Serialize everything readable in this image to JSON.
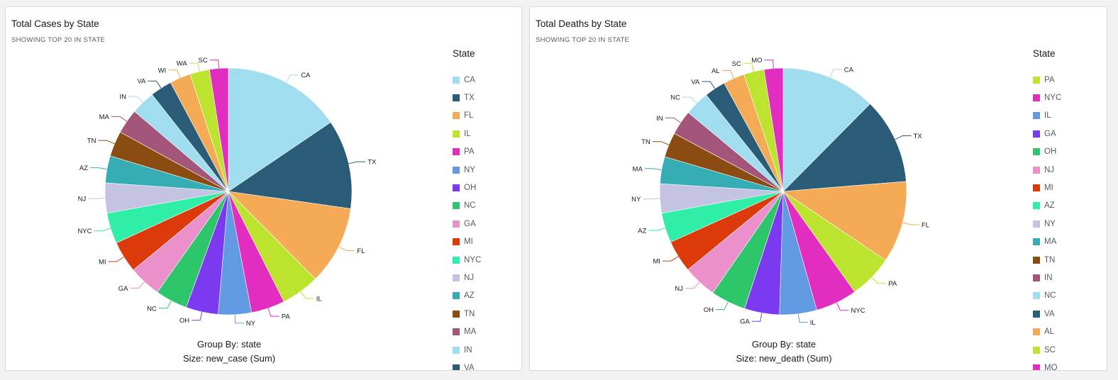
{
  "chart_data": [
    {
      "type": "pie",
      "title": "Total Cases by State",
      "subtitle": "SHOWING TOP 20 IN STATE",
      "legend_title": "State",
      "legend_placement": "right",
      "group_by": "Group By: state",
      "size_by": "Size: new_case (Sum)",
      "slices": [
        {
          "name": "CA",
          "value": 15.8,
          "color": "#a0ddef"
        },
        {
          "name": "TX",
          "value": 11.9,
          "color": "#2a5c78"
        },
        {
          "name": "FL",
          "value": 10.5,
          "color": "#f5aa55"
        },
        {
          "name": "IL",
          "value": 5.1,
          "color": "#bce42f"
        },
        {
          "name": "PA",
          "value": 4.5,
          "color": "#e32dc1"
        },
        {
          "name": "NY",
          "value": 4.4,
          "color": "#6199e2"
        },
        {
          "name": "OH",
          "value": 4.3,
          "color": "#7b3af0"
        },
        {
          "name": "NC",
          "value": 4.3,
          "color": "#2dc66b"
        },
        {
          "name": "GA",
          "value": 4.3,
          "color": "#ec90cb"
        },
        {
          "name": "MI",
          "value": 4.2,
          "color": "#dd3a0c"
        },
        {
          "name": "NYC",
          "value": 4.1,
          "color": "#2eeea8"
        },
        {
          "name": "NJ",
          "value": 4.0,
          "color": "#c4c4e2"
        },
        {
          "name": "AZ",
          "value": 3.6,
          "color": "#36adb5"
        },
        {
          "name": "TN",
          "value": 3.4,
          "color": "#8b4c12"
        },
        {
          "name": "MA",
          "value": 3.3,
          "color": "#a4567a"
        },
        {
          "name": "IN",
          "value": 3.2,
          "color": "#a0ddef"
        },
        {
          "name": "VA",
          "value": 2.9,
          "color": "#2a5c78"
        },
        {
          "name": "WI",
          "value": 2.8,
          "color": "#f5aa55"
        },
        {
          "name": "WA",
          "value": 2.6,
          "color": "#bce42f"
        },
        {
          "name": "SC",
          "value": 2.5,
          "color": "#e32dc1"
        }
      ],
      "legend_items": [
        "CA",
        "TX",
        "FL",
        "IL",
        "PA",
        "NY",
        "OH",
        "NC",
        "GA",
        "MI",
        "NYC",
        "NJ",
        "AZ",
        "TN",
        "MA",
        "IN",
        "VA"
      ]
    },
    {
      "type": "pie",
      "title": "Total Deaths by State",
      "subtitle": "SHOWING TOP 20 IN STATE",
      "legend_title": "State",
      "legend_placement": "right",
      "group_by": "Group By: state",
      "size_by": "Size: new_death (Sum)",
      "slices": [
        {
          "name": "CA",
          "value": 13.0,
          "color": "#a0ddef"
        },
        {
          "name": "TX",
          "value": 11.8,
          "color": "#2a5c78"
        },
        {
          "name": "FL",
          "value": 11.2,
          "color": "#f5aa55"
        },
        {
          "name": "PA",
          "value": 6.0,
          "color": "#bce42f"
        },
        {
          "name": "NYC",
          "value": 5.7,
          "color": "#e32dc1"
        },
        {
          "name": "IL",
          "value": 5.1,
          "color": "#6199e2"
        },
        {
          "name": "GA",
          "value": 4.8,
          "color": "#7b3af0"
        },
        {
          "name": "OH",
          "value": 4.8,
          "color": "#2dc66b"
        },
        {
          "name": "NJ",
          "value": 4.6,
          "color": "#ec90cb"
        },
        {
          "name": "MI",
          "value": 4.4,
          "color": "#dd3a0c"
        },
        {
          "name": "AZ",
          "value": 4.1,
          "color": "#2eeea8"
        },
        {
          "name": "NY",
          "value": 4.0,
          "color": "#c4c4e2"
        },
        {
          "name": "MA",
          "value": 3.7,
          "color": "#36adb5"
        },
        {
          "name": "TN",
          "value": 3.4,
          "color": "#8b4c12"
        },
        {
          "name": "IN",
          "value": 3.4,
          "color": "#a4567a"
        },
        {
          "name": "NC",
          "value": 3.4,
          "color": "#a0ddef"
        },
        {
          "name": "VA",
          "value": 2.9,
          "color": "#2a5c78"
        },
        {
          "name": "AL",
          "value": 2.9,
          "color": "#f5aa55"
        },
        {
          "name": "SC",
          "value": 2.8,
          "color": "#bce42f"
        },
        {
          "name": "MO",
          "value": 2.6,
          "color": "#e32dc1"
        }
      ],
      "legend_items": [
        "PA",
        "NYC",
        "IL",
        "GA",
        "OH",
        "NJ",
        "MI",
        "AZ",
        "NY",
        "MA",
        "TN",
        "IN",
        "NC",
        "VA",
        "AL",
        "SC",
        "MO"
      ]
    }
  ]
}
